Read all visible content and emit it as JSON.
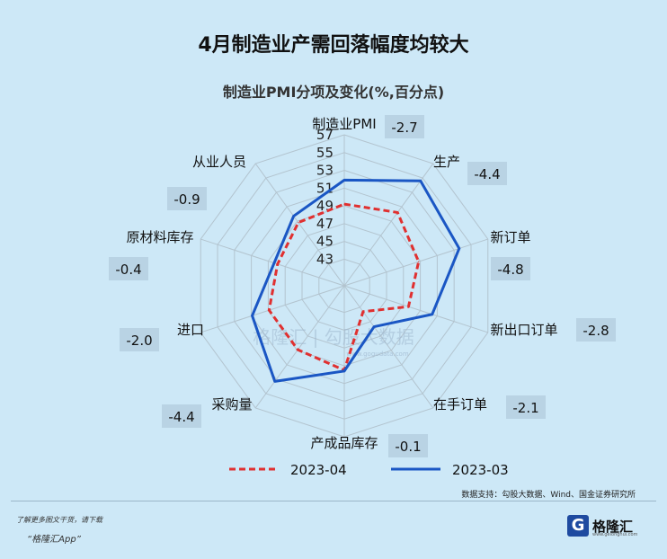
{
  "title": "4月制造业产需回落幅度均较大",
  "chart_data": {
    "type": "radar",
    "subtitle": "制造业PMI分项及变化(%,百分点)",
    "radial_ticks": [
      43,
      45,
      47,
      49,
      51,
      53,
      55,
      57
    ],
    "rlim": [
      40,
      57
    ],
    "grid": true,
    "axes": [
      {
        "label": "制造业PMI",
        "change": "-2.7"
      },
      {
        "label": "生产",
        "change": "-4.4"
      },
      {
        "label": "新订单",
        "change": "-4.8"
      },
      {
        "label": "新出口订单",
        "change": "-2.8"
      },
      {
        "label": "在手订单",
        "change": "-2.1"
      },
      {
        "label": "产成品库存",
        "change": "-0.1"
      },
      {
        "label": "采购量",
        "change": "-4.4"
      },
      {
        "label": "进口",
        "change": "-2.0"
      },
      {
        "label": "原材料库存",
        "change": "-0.4"
      },
      {
        "label": "从业人员",
        "change": "-0.9"
      }
    ],
    "series": [
      {
        "name": "2023-04",
        "color": "#e03030",
        "dash": true,
        "values": [
          49.2,
          50.2,
          48.8,
          47.6,
          43.6,
          49.5,
          48.9,
          48.9,
          47.9,
          48.8
        ]
      },
      {
        "name": "2023-03",
        "color": "#1a56c4",
        "dash": false,
        "values": [
          51.9,
          54.6,
          53.6,
          50.4,
          45.7,
          49.6,
          53.3,
          50.9,
          48.3,
          49.7
        ]
      }
    ],
    "legend_position": "bottom"
  },
  "watermark": "格隆汇 | 勾股大数据",
  "watermark_url": "www.gogudata.com",
  "source": "数据支持：勾股大数据、Wind、国金证券研究所",
  "footer": {
    "line1": "了解更多图文干货，请下载",
    "line2": "“格隆汇App”"
  },
  "logo": {
    "mark": "G",
    "text": "格隆汇",
    "sub": "www.gelonghui.com"
  }
}
